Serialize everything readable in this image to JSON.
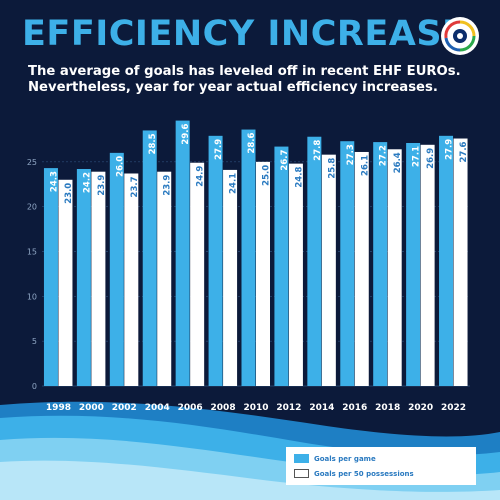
{
  "header": {
    "title": "EFFICIENCY INCREASE",
    "subtitle_line1": "The average of goals has leveled off in recent EHF EUROs.",
    "subtitle_line2": "Nevertheless, year for year actual efficiency increases."
  },
  "logo": {
    "icon": "ehf-euro-logo-icon"
  },
  "colors": {
    "background": "#0c1a3a",
    "accent": "#3db0e8",
    "goals_bar": "#3db0e8",
    "possession_bar": "#ffffff"
  },
  "chart_data": {
    "type": "bar",
    "categories": [
      "1998",
      "2000",
      "2002",
      "2004",
      "2006",
      "2008",
      "2010",
      "2012",
      "2014",
      "2016",
      "2018",
      "2020",
      "2022"
    ],
    "series": [
      {
        "name": "Goals per game",
        "values": [
          24.3,
          24.2,
          26.0,
          28.5,
          29.6,
          27.9,
          28.6,
          26.7,
          27.8,
          27.3,
          27.2,
          27.1,
          27.9
        ]
      },
      {
        "name": "Goals per 50 possessions",
        "values": [
          23.0,
          23.9,
          23.7,
          23.9,
          24.9,
          24.1,
          25.0,
          24.8,
          25.8,
          26.1,
          26.4,
          26.9,
          27.6
        ]
      }
    ],
    "value_labels": {
      "Goals per game": [
        "24.3",
        "24.2",
        "26.0",
        "28.5",
        "29.6",
        "27.9",
        "28.6",
        "26.7",
        "27.8",
        "27.3",
        "27.2",
        "27.1",
        "27.9"
      ],
      "Goals per 50 possessions": [
        "23.0",
        "23.9",
        "23.7",
        "23.9",
        "24.9",
        "24.1",
        "25.0",
        "24.8",
        "25.8",
        "26.1",
        "26.4",
        "26.9",
        "27.6"
      ]
    },
    "yticks": [
      0,
      5,
      10,
      15,
      20,
      25
    ],
    "ylim": [
      0,
      30
    ],
    "grid": true,
    "legend_position": "bottom-right"
  }
}
